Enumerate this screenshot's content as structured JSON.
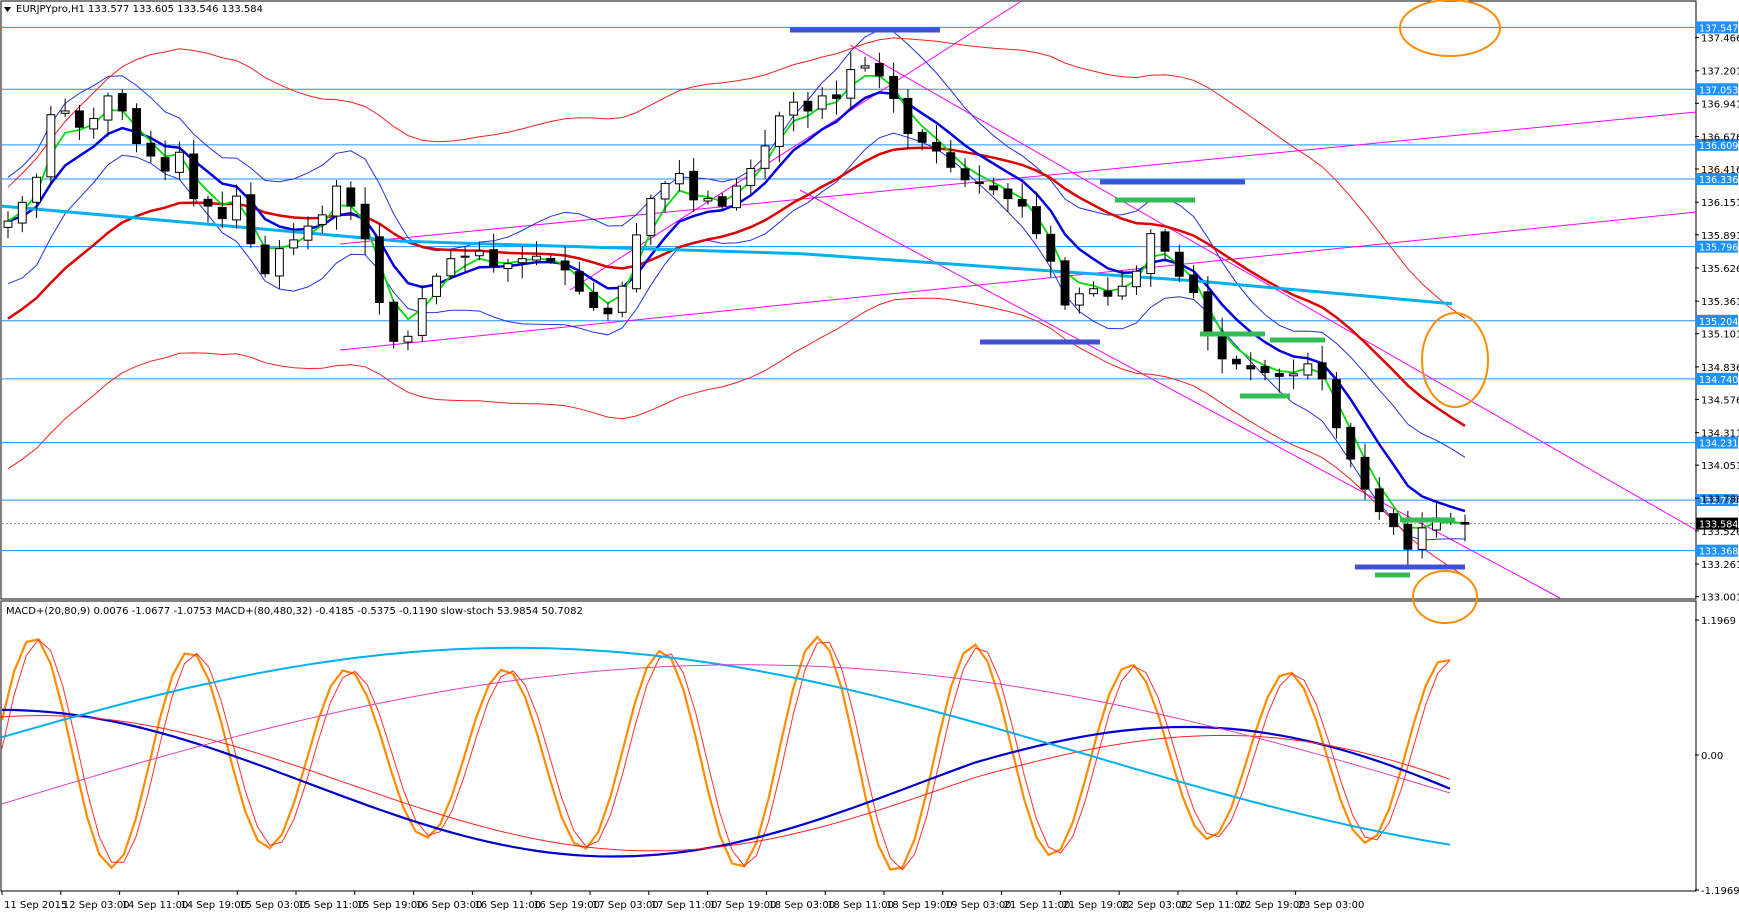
{
  "header": {
    "symbol_line": "EURJPYpro,H1  133.577 133.605 133.546 133.584",
    "indicator_line": "MACD+(20,80,9) 0.0076 -1.0677 -1.0753  MACD+(80,480,32) -0.4185 -0.5375 -0.1190  slow-stoch 53.9854 50.7082"
  },
  "chart_data": {
    "type": "line",
    "symbol": "EURJPYpro",
    "timeframe": "H1",
    "ohlc_last": {
      "open": 133.577,
      "high": 133.605,
      "low": 133.546,
      "close": 133.584
    },
    "price_axis_ticks": [
      "137.466",
      "137.201",
      "136.941",
      "136.676",
      "136.416",
      "136.151",
      "135.891",
      "135.626",
      "135.361",
      "135.101",
      "134.836",
      "134.576",
      "134.311",
      "134.051",
      "133.786",
      "133.526",
      "133.261",
      "133.001"
    ],
    "price_ylim": [
      132.99,
      137.75
    ],
    "horizontal_levels": [
      "137.547",
      "137.053",
      "136.609",
      "136.336",
      "135.796",
      "135.204",
      "134.740",
      "134.231",
      "133.772",
      "133.368"
    ],
    "current_price_label": "133.584",
    "time_axis_labels": [
      "11 Sep 2015",
      "12 Sep 03:00",
      "14 Sep 11:00",
      "14 Sep 19:00",
      "15 Sep 03:00",
      "15 Sep 11:00",
      "15 Sep 19:00",
      "16 Sep 03:00",
      "16 Sep 11:00",
      "16 Sep 19:00",
      "17 Sep 03:00",
      "17 Sep 11:00",
      "17 Sep 19:00",
      "18 Sep 03:00",
      "18 Sep 11:00",
      "18 Sep 19:00",
      "19 Sep 03:00",
      "21 Sep 11:00",
      "21 Sep 19:00",
      "22 Sep 03:00",
      "22 Sep 11:00",
      "22 Sep 19:00",
      "23 Sep 03:00"
    ],
    "closes": [
      136.0,
      136.15,
      136.35,
      136.85,
      136.88,
      136.75,
      136.82,
      137.0,
      136.88,
      136.62,
      136.52,
      136.4,
      136.55,
      136.18,
      136.12,
      136.02,
      136.2,
      135.82,
      135.58,
      135.78,
      135.85,
      135.96,
      136.05,
      136.28,
      136.12,
      135.86,
      135.35,
      135.04,
      135.08,
      135.38,
      135.56,
      135.7,
      135.72,
      135.76,
      135.64,
      135.66,
      135.7,
      135.72,
      135.68,
      135.61,
      135.44,
      135.31,
      135.26,
      135.48,
      135.89,
      136.18,
      136.3,
      136.38,
      136.17,
      136.18,
      136.12,
      136.28,
      136.42,
      136.6,
      136.84,
      136.95,
      136.88,
      137.0,
      136.98,
      137.21,
      137.24,
      137.16,
      136.98,
      136.7,
      136.63,
      136.56,
      136.43,
      136.33,
      136.3,
      136.25,
      136.18,
      136.12,
      135.9,
      135.68,
      135.33,
      135.42,
      135.46,
      135.4,
      135.48,
      135.6,
      135.9,
      135.76,
      135.56,
      135.43,
      135.1,
      134.9,
      134.86,
      134.82,
      134.79,
      134.76,
      134.78,
      134.86,
      134.74,
      134.35,
      134.1,
      133.86,
      133.68,
      133.56,
      133.38,
      133.55,
      133.63,
      133.6,
      133.58
    ],
    "range_min": 132.99,
    "range_max": 137.75,
    "overlays": [
      {
        "color": "#00dd00",
        "period": 8,
        "kind": "ema"
      },
      {
        "color": "#0000dd",
        "period": 21,
        "kind": "ema"
      },
      {
        "color": "#dd0000",
        "period": 70,
        "kind": "ema"
      },
      {
        "color": "#00b0f0",
        "period": 200,
        "kind": "linear"
      }
    ],
    "oscillator": {
      "ylim": [
        -1.1969,
        1.1969
      ],
      "ticks": [
        "1.1969",
        "0.00",
        "-1.1969"
      ],
      "series": [
        {
          "color": "#ff8c00",
          "kind": "stoch"
        },
        {
          "color": "#0000cc",
          "kind": "macd-fast"
        },
        {
          "color": "#ff0000",
          "kind": "signal-fast"
        },
        {
          "color": "#00b0f0",
          "kind": "macd-slow"
        },
        {
          "color": "#e040c0",
          "kind": "signal-slow"
        }
      ]
    }
  },
  "colors": {
    "up_candle": "#ffffff",
    "down_candle": "#000000",
    "level_line": "#1e90ff",
    "level_tag_bg": "#1e90ff",
    "trendline": "#ff00ff",
    "annotation_ellipse": "#ff8c00",
    "resistance_bar": "#3f51d6",
    "support_bar": "#33bb55"
  }
}
